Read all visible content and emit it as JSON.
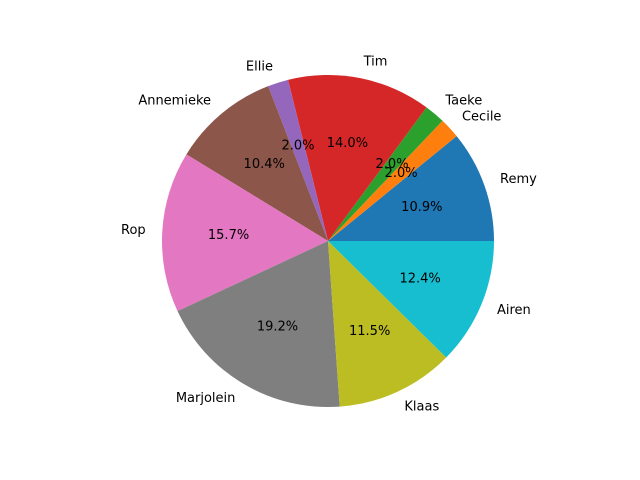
{
  "chart_data": {
    "type": "pie",
    "title": "",
    "start_angle_deg": 0,
    "direction": "counterclockwise",
    "slices": [
      {
        "label": "Remy",
        "value": 10.9,
        "pct_label": "10.9%",
        "color": "#1f77b4"
      },
      {
        "label": "Cecile",
        "value": 2.0,
        "pct_label": "2.0%",
        "color": "#ff7f0e"
      },
      {
        "label": "Taeke",
        "value": 2.0,
        "pct_label": "2.0%",
        "color": "#2ca02c"
      },
      {
        "label": "Tim",
        "value": 14.0,
        "pct_label": "14.0%",
        "color": "#d62728"
      },
      {
        "label": "Ellie",
        "value": 2.0,
        "pct_label": "2.0%",
        "color": "#9467bd"
      },
      {
        "label": "Annemieke",
        "value": 10.4,
        "pct_label": "10.4%",
        "color": "#8c564b"
      },
      {
        "label": "Rop",
        "value": 15.7,
        "pct_label": "15.7%",
        "color": "#e377c2"
      },
      {
        "label": "Marjolein",
        "value": 19.2,
        "pct_label": "19.2%",
        "color": "#7f7f7f"
      },
      {
        "label": "Klaas",
        "value": 11.5,
        "pct_label": "11.5%",
        "color": "#bcbd22"
      },
      {
        "label": "Airen",
        "value": 12.4,
        "pct_label": "12.4%",
        "color": "#17becf"
      }
    ]
  }
}
